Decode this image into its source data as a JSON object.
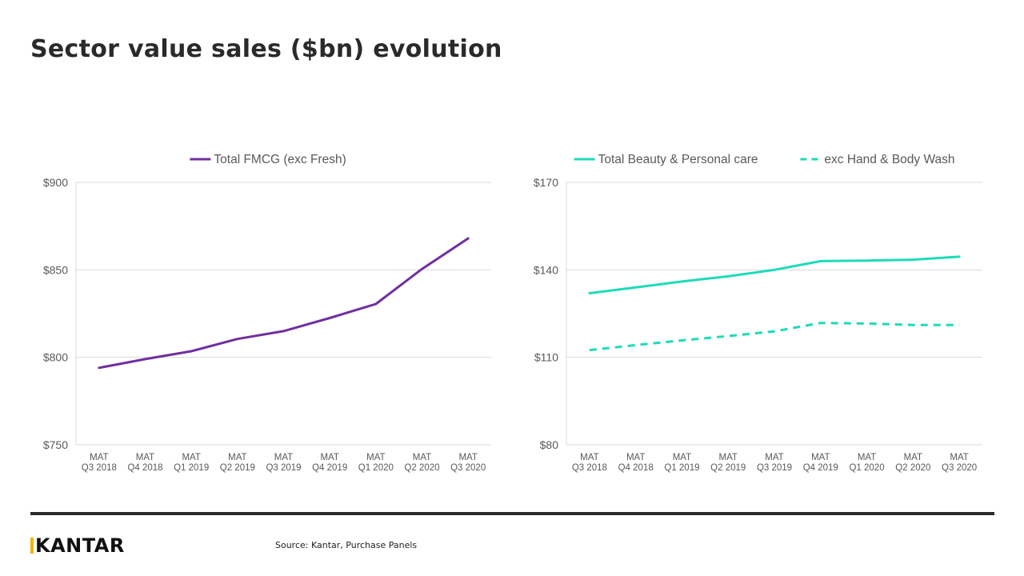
{
  "page": {
    "title": "Sector value sales ($bn) evolution",
    "source": "Source: Kantar, Purchase Panels",
    "logo_text": "KANTAR"
  },
  "colors": {
    "purple": "#7030a0",
    "teal": "#1ddbb8",
    "grid": "#d9d9d9",
    "axis_text": "#595959"
  },
  "chart_data": [
    {
      "type": "line",
      "title": "",
      "categories": [
        [
          "MAT",
          "Q3 2018"
        ],
        [
          "MAT",
          "Q4 2018"
        ],
        [
          "MAT",
          "Q1 2019"
        ],
        [
          "MAT",
          "Q2 2019"
        ],
        [
          "MAT",
          "Q3 2019"
        ],
        [
          "MAT",
          "Q4 2019"
        ],
        [
          "MAT",
          "Q1 2020"
        ],
        [
          "MAT",
          "Q2 2020"
        ],
        [
          "MAT",
          "Q3 2020"
        ]
      ],
      "series": [
        {
          "name": "Total FMCG (exc Fresh)",
          "values": [
            794,
            799,
            803.5,
            810.5,
            815,
            822.5,
            830.5,
            850.5,
            868
          ],
          "style": "solid",
          "color": "#7030a0"
        }
      ],
      "ylim": [
        750,
        900
      ],
      "yticks": [
        750,
        800,
        850,
        900
      ],
      "ytick_labels": [
        "$750",
        "$800",
        "$850",
        "$900"
      ],
      "xlabel": "",
      "ylabel": "",
      "legend": "top-center",
      "grid": true
    },
    {
      "type": "line",
      "title": "",
      "categories": [
        [
          "MAT",
          "Q3 2018"
        ],
        [
          "MAT",
          "Q4 2018"
        ],
        [
          "MAT",
          "Q1 2019"
        ],
        [
          "MAT",
          "Q2 2019"
        ],
        [
          "MAT",
          "Q3 2019"
        ],
        [
          "MAT",
          "Q4 2019"
        ],
        [
          "MAT",
          "Q1 2020"
        ],
        [
          "MAT",
          "Q2 2020"
        ],
        [
          "MAT",
          "Q3 2020"
        ]
      ],
      "series": [
        {
          "name": "Total Beauty & Personal care",
          "values": [
            132,
            134,
            136,
            137.8,
            140,
            143,
            143.2,
            143.5,
            144.5
          ],
          "style": "solid",
          "color": "#1ddbb8"
        },
        {
          "name": "exc Hand & Body Wash",
          "values": [
            112.5,
            114.2,
            115.8,
            117.3,
            118.9,
            121.8,
            121.6,
            121.1,
            121.1
          ],
          "style": "dashed",
          "color": "#1ddbb8"
        }
      ],
      "ylim": [
        80,
        170
      ],
      "yticks": [
        80,
        110,
        140,
        170
      ],
      "ytick_labels": [
        "$80",
        "$110",
        "$140",
        "$170"
      ],
      "xlabel": "",
      "ylabel": "",
      "legend": "top-center",
      "grid": true
    }
  ]
}
